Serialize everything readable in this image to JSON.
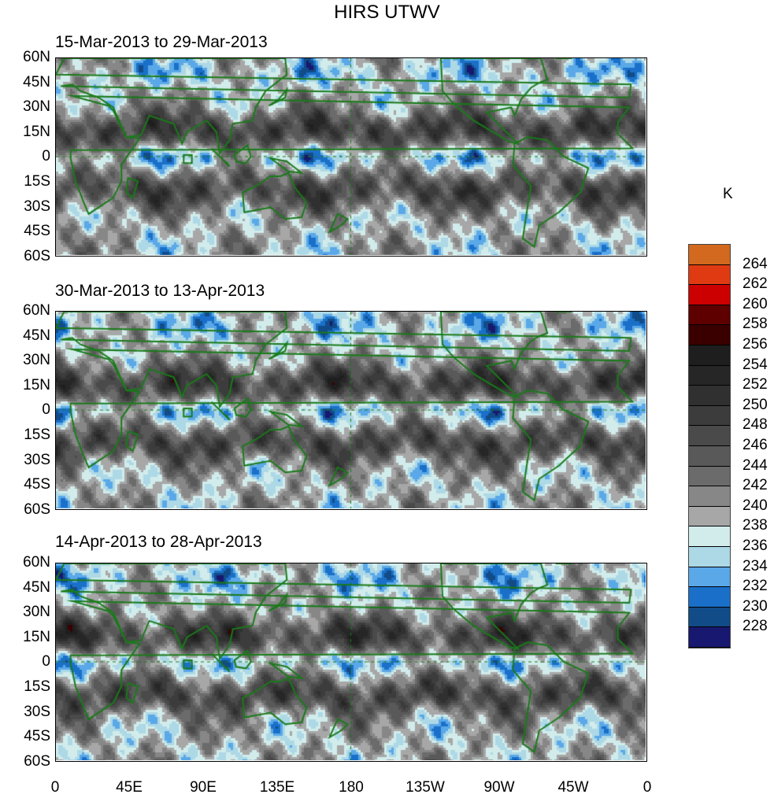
{
  "title": "HIRS UTWV",
  "panels": [
    {
      "title": "15-Mar-2013 to 29-Mar-2013"
    },
    {
      "title": "30-Mar-2013 to 13-Apr-2013"
    },
    {
      "title": "14-Apr-2013 to 28-Apr-2013"
    }
  ],
  "lat_ticks": [
    "60N",
    "45N",
    "30N",
    "15N",
    "0",
    "15S",
    "30S",
    "45S",
    "60S"
  ],
  "lon_ticks": [
    "0",
    "45E",
    "90E",
    "135E",
    "180",
    "135W",
    "90W",
    "45W",
    "0"
  ],
  "colorbar": {
    "unit": "K",
    "labels": [
      "264",
      "262",
      "260",
      "258",
      "256",
      "254",
      "252",
      "250",
      "248",
      "246",
      "244",
      "242",
      "240",
      "238",
      "236",
      "234",
      "232",
      "230",
      "228"
    ],
    "colors": [
      "#d2691e",
      "#e03a12",
      "#cc0000",
      "#5e0000",
      "#3a0000",
      "#1e1e1e",
      "#262626",
      "#303030",
      "#3c3c3c",
      "#4a4a4a",
      "#595959",
      "#6b6b6b",
      "#878787",
      "#a7a7a7",
      "#d2ecec",
      "#add8e6",
      "#5aa8e8",
      "#1a70c8",
      "#124c88",
      "#181870"
    ]
  },
  "coast_color": "#1a7a1a"
}
